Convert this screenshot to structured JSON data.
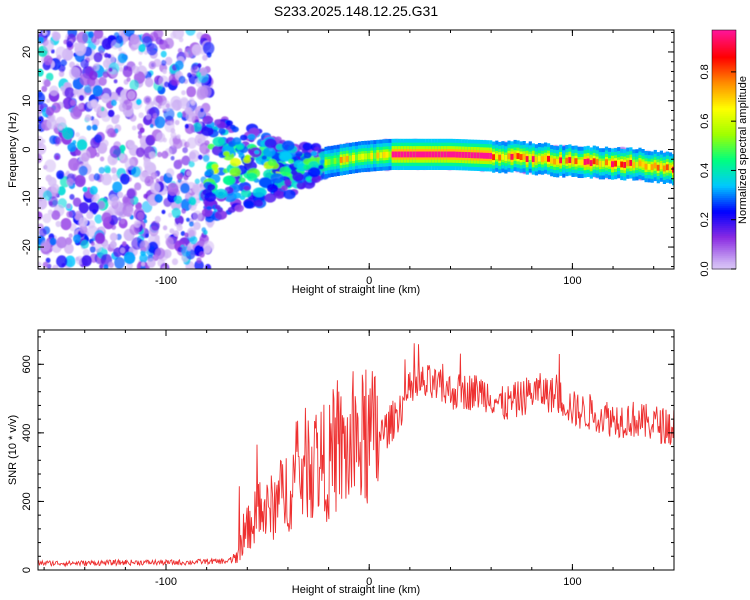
{
  "figure": {
    "title": "S233.2025.148.12.25.G31"
  },
  "chart_data": [
    {
      "type": "heatmap",
      "xlabel": "Height of straight line (km)",
      "ylabel": "Frequency (Hz)",
      "xlim": [
        -163,
        150
      ],
      "ylim": [
        -24.5,
        24.5
      ],
      "xticks": [
        -100,
        0,
        100
      ],
      "yticks": [
        -20,
        -10,
        0,
        10,
        20
      ],
      "colorbar": {
        "label": "Normalized spectral amplitude",
        "range": [
          0,
          0.97
        ],
        "ticks": [
          0.0,
          0.2,
          0.4,
          0.6,
          0.8
        ],
        "colormap": [
          "#ffffff",
          "#cfb4f4",
          "#8a2be2",
          "#0000ff",
          "#00c8ff",
          "#00ff80",
          "#a0ff00",
          "#ffff00",
          "#ff8c00",
          "#ff0000",
          "#ff1493"
        ]
      },
      "centerline": {
        "description_points_x": [
          -75,
          -60,
          -40,
          -20,
          -5,
          10,
          40,
          70,
          100,
          130,
          150
        ],
        "frequency_hz": [
          -3.5,
          -3.5,
          -4.0,
          -2.5,
          -1.5,
          -1.0,
          -1.0,
          -1.5,
          -2.5,
          -3.0,
          -4.0
        ]
      },
      "regions": [
        {
          "x_range": [
            -163,
            -80
          ],
          "character": "broadband noise",
          "amplitude": [
            0.0,
            0.3
          ]
        },
        {
          "x_range": [
            -80,
            -15
          ],
          "character": "scattered signal",
          "amplitude": [
            0.2,
            0.6
          ]
        },
        {
          "x_range": [
            10,
            60
          ],
          "character": "strong stable tone",
          "amplitude": [
            0.85,
            0.97
          ]
        },
        {
          "x_range": [
            60,
            150
          ],
          "character": "tone with sidebands",
          "amplitude": [
            0.5,
            0.9
          ]
        }
      ]
    },
    {
      "type": "line",
      "xlabel": "Height of straight line (km)",
      "ylabel": "SNR (10 * v/v)",
      "xlim": [
        -163,
        150
      ],
      "ylim": [
        0,
        700
      ],
      "xticks": [
        -100,
        0,
        100
      ],
      "yticks": [
        0,
        200,
        400,
        600
      ],
      "color": "#ee3030",
      "series": [
        {
          "x": [
            -163,
            -140,
            -120,
            -100,
            -90,
            -80,
            -70,
            -65,
            -60,
            -55,
            -50,
            -45,
            -40,
            -35,
            -30,
            -25,
            -20,
            -15,
            -10,
            -5,
            0,
            5,
            10,
            15,
            20,
            25,
            30,
            35,
            40,
            45,
            50,
            55,
            60,
            65,
            70,
            75,
            80,
            85,
            90,
            95,
            100,
            105,
            110,
            115,
            120,
            125,
            130,
            135,
            140,
            145,
            150
          ],
          "y": [
            20,
            20,
            22,
            22,
            22,
            25,
            25,
            40,
            120,
            160,
            170,
            200,
            240,
            270,
            320,
            320,
            310,
            350,
            340,
            370,
            380,
            390,
            420,
            470,
            520,
            540,
            540,
            530,
            520,
            520,
            520,
            520,
            510,
            480,
            490,
            500,
            520,
            520,
            510,
            500,
            470,
            460,
            460,
            450,
            440,
            440,
            440,
            430,
            430,
            420,
            420
          ]
        }
      ]
    }
  ]
}
